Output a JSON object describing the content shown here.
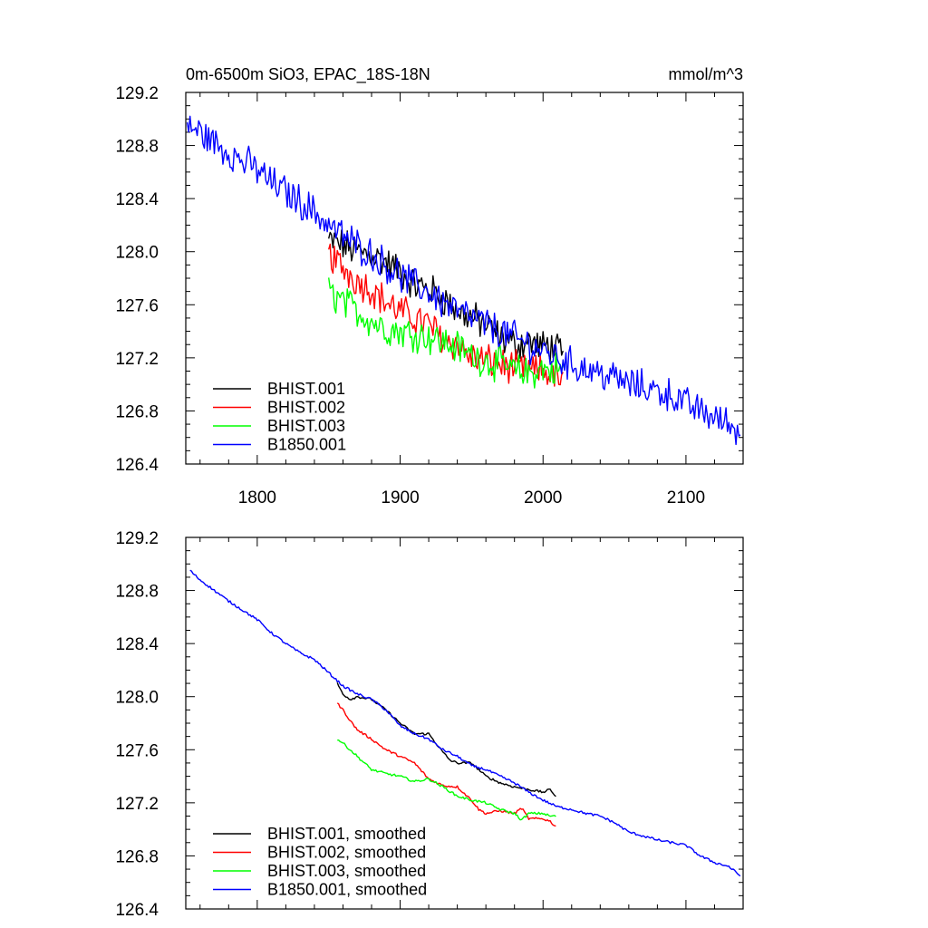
{
  "chart_data": [
    {
      "type": "line",
      "title": "0m-6500m SiO3, EPAC_18S-18N",
      "units": "mmol/m^3",
      "xlabel": "",
      "ylabel": "",
      "xlim": [
        1750,
        2140
      ],
      "ylim": [
        126.4,
        129.2
      ],
      "xticks": [
        1800,
        1900,
        2000,
        2100
      ],
      "yticks": [
        126.4,
        126.8,
        127.2,
        127.6,
        128.0,
        128.4,
        128.8,
        129.2
      ],
      "ytick_labels": [
        "126.4",
        "126.8",
        "127.2",
        "127.6",
        "128.0",
        "128.4",
        "128.8",
        "129.2"
      ],
      "xtick_labels": [
        "1800",
        "1900",
        "2000",
        "2100"
      ],
      "grid": false,
      "legend": "bottom-left",
      "series": [
        {
          "name": "BHIST.001",
          "color": "#000000",
          "x": [
            1850,
            1860,
            1870,
            1880,
            1890,
            1900,
            1910,
            1920,
            1930,
            1940,
            1950,
            1960,
            1970,
            1980,
            1990,
            2000,
            2005,
            2010,
            2014
          ],
          "y": [
            128.08,
            128.05,
            128.0,
            127.98,
            127.92,
            127.85,
            127.75,
            127.72,
            127.65,
            127.55,
            127.5,
            127.45,
            127.35,
            127.3,
            127.32,
            127.28,
            127.3,
            127.25,
            127.2
          ]
        },
        {
          "name": "BHIST.002",
          "color": "#ff0000",
          "x": [
            1850,
            1860,
            1870,
            1880,
            1890,
            1900,
            1910,
            1920,
            1930,
            1940,
            1950,
            1960,
            1970,
            1980,
            1990,
            2000,
            2005,
            2010,
            2014
          ],
          "y": [
            127.98,
            127.88,
            127.78,
            127.72,
            127.62,
            127.55,
            127.5,
            127.45,
            127.35,
            127.3,
            127.2,
            127.18,
            127.15,
            127.12,
            127.1,
            127.1,
            127.08,
            127.05,
            127.02
          ]
        },
        {
          "name": "BHIST.003",
          "color": "#00ff00",
          "x": [
            1850,
            1860,
            1870,
            1880,
            1890,
            1900,
            1910,
            1920,
            1930,
            1940,
            1950,
            1960,
            1970,
            1980,
            1990,
            2000,
            2005,
            2010,
            2014
          ],
          "y": [
            127.7,
            127.62,
            127.55,
            127.48,
            127.42,
            127.4,
            127.38,
            127.36,
            127.32,
            127.28,
            127.22,
            127.18,
            127.15,
            127.1,
            127.08,
            127.12,
            127.1,
            127.12,
            127.1
          ]
        },
        {
          "name": "B1850.001",
          "color": "#0000ff",
          "x": [
            1751,
            1760,
            1770,
            1780,
            1790,
            1800,
            1810,
            1820,
            1830,
            1840,
            1850,
            1860,
            1870,
            1880,
            1890,
            1900,
            1910,
            1920,
            1930,
            1940,
            1950,
            1960,
            1970,
            1980,
            1990,
            2000,
            2010,
            2020,
            2030,
            2040,
            2050,
            2060,
            2070,
            2080,
            2090,
            2100,
            2110,
            2120,
            2130,
            2138
          ],
          "y": [
            128.95,
            128.9,
            128.82,
            128.75,
            128.68,
            128.62,
            128.52,
            128.45,
            128.38,
            128.3,
            128.2,
            128.12,
            128.05,
            127.98,
            127.9,
            127.82,
            127.75,
            127.7,
            127.62,
            127.55,
            127.5,
            127.45,
            127.4,
            127.35,
            127.3,
            127.25,
            127.2,
            127.15,
            127.12,
            127.08,
            127.05,
            127.0,
            126.98,
            126.95,
            126.92,
            126.85,
            126.8,
            126.75,
            126.7,
            126.65
          ]
        }
      ],
      "noise": true
    },
    {
      "type": "line",
      "title": "",
      "xlabel": "",
      "ylabel": "",
      "xlim": [
        1750,
        2140
      ],
      "ylim": [
        126.4,
        129.2
      ],
      "xticks": [
        1800,
        1900,
        2000,
        2100
      ],
      "yticks": [
        126.4,
        126.8,
        127.2,
        127.6,
        128.0,
        128.4,
        128.8,
        129.2
      ],
      "ytick_labels": [
        "126.4",
        "126.8",
        "127.2",
        "127.6",
        "128.0",
        "128.4",
        "128.8",
        "129.2"
      ],
      "grid": false,
      "legend": "bottom-left",
      "series": [
        {
          "name": "BHIST.001, smoothed",
          "color": "#000000",
          "x": [
            1856,
            1860,
            1865,
            1870,
            1880,
            1890,
            1900,
            1910,
            1920,
            1925,
            1930,
            1935,
            1940,
            1950,
            1960,
            1970,
            1980,
            1990,
            2000,
            2005,
            2009
          ],
          "y": [
            128.1,
            128.02,
            127.98,
            128.0,
            127.98,
            127.9,
            127.8,
            127.72,
            127.72,
            127.65,
            127.58,
            127.52,
            127.5,
            127.5,
            127.4,
            127.35,
            127.32,
            127.3,
            127.28,
            127.3,
            127.25
          ]
        },
        {
          "name": "BHIST.002, smoothed",
          "color": "#ff0000",
          "x": [
            1856,
            1860,
            1865,
            1870,
            1880,
            1890,
            1900,
            1910,
            1920,
            1930,
            1940,
            1950,
            1955,
            1960,
            1970,
            1980,
            1985,
            1990,
            2000,
            2005,
            2009
          ],
          "y": [
            127.95,
            127.9,
            127.82,
            127.75,
            127.68,
            127.6,
            127.55,
            127.5,
            127.38,
            127.33,
            127.32,
            127.22,
            127.15,
            127.12,
            127.14,
            127.12,
            127.16,
            127.08,
            127.08,
            127.06,
            127.02
          ]
        },
        {
          "name": "BHIST.003, smoothed",
          "color": "#00ff00",
          "x": [
            1856,
            1860,
            1870,
            1880,
            1890,
            1900,
            1910,
            1920,
            1930,
            1940,
            1950,
            1960,
            1970,
            1980,
            1985,
            1990,
            2000,
            2005,
            2009
          ],
          "y": [
            127.68,
            127.65,
            127.55,
            127.45,
            127.42,
            127.4,
            127.36,
            127.38,
            127.32,
            127.25,
            127.22,
            127.2,
            127.15,
            127.12,
            127.07,
            127.12,
            127.12,
            127.1,
            127.1
          ]
        },
        {
          "name": "B1850.001, smoothed",
          "color": "#0000ff",
          "x": [
            1753,
            1760,
            1770,
            1780,
            1790,
            1800,
            1810,
            1820,
            1830,
            1840,
            1850,
            1860,
            1870,
            1880,
            1890,
            1900,
            1910,
            1920,
            1930,
            1940,
            1950,
            1960,
            1970,
            1980,
            1990,
            2000,
            2010,
            2020,
            2030,
            2040,
            2050,
            2060,
            2070,
            2080,
            2090,
            2100,
            2110,
            2120,
            2130,
            2138
          ],
          "y": [
            128.95,
            128.88,
            128.8,
            128.72,
            128.65,
            128.58,
            128.48,
            128.4,
            128.33,
            128.28,
            128.18,
            128.08,
            128.02,
            127.98,
            127.9,
            127.78,
            127.72,
            127.68,
            127.6,
            127.55,
            127.48,
            127.45,
            127.4,
            127.35,
            127.28,
            127.22,
            127.17,
            127.15,
            127.12,
            127.1,
            127.05,
            126.98,
            126.95,
            126.92,
            126.9,
            126.88,
            126.8,
            126.75,
            126.72,
            126.65
          ]
        }
      ],
      "noise": false
    }
  ]
}
